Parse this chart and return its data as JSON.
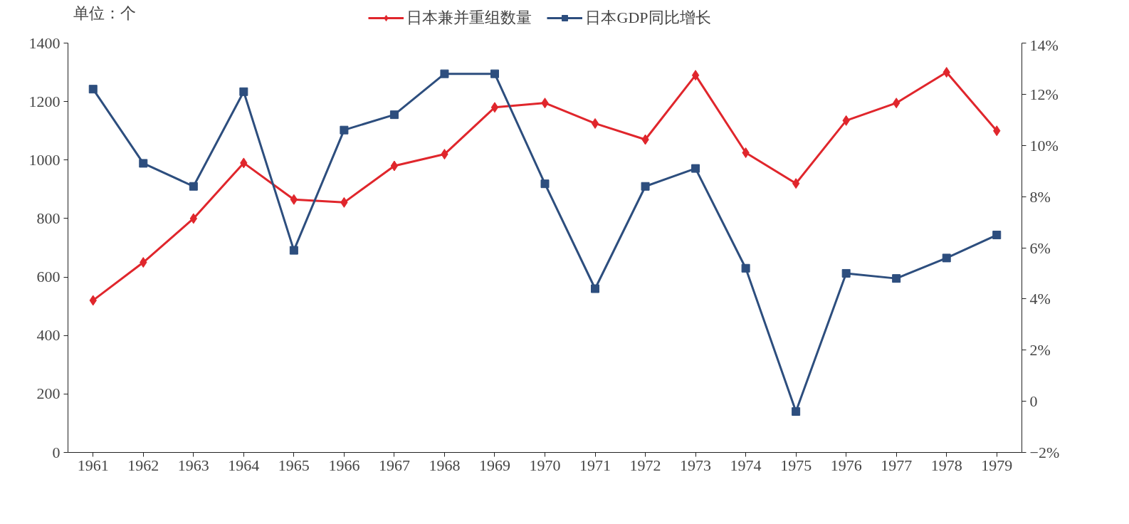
{
  "chart_data": {
    "type": "line",
    "categories": [
      "1961",
      "1962",
      "1963",
      "1964",
      "1965",
      "1966",
      "1967",
      "1968",
      "1969",
      "1970",
      "1971",
      "1972",
      "1973",
      "1974",
      "1975",
      "1976",
      "1977",
      "1978",
      "1979"
    ],
    "series": [
      {
        "name": "日本兼并重组数量",
        "color": "#e0262c",
        "marker": "diamond",
        "values": [
          520,
          650,
          800,
          990,
          865,
          855,
          980,
          1020,
          1180,
          1195,
          1125,
          1070,
          1290,
          1025,
          920,
          1135,
          1195,
          1300,
          1100
        ]
      },
      {
        "name": "日本GDP同比增长",
        "color": "#2d4e7e",
        "marker": "square",
        "axis": "y2",
        "values": [
          12.2,
          9.3,
          8.4,
          12.1,
          5.9,
          10.6,
          11.2,
          12.8,
          12.8,
          8.5,
          4.4,
          8.4,
          9.1,
          5.2,
          -0.4,
          5.0,
          4.8,
          5.6,
          6.5
        ]
      }
    ],
    "ylim": [
      0,
      1400
    ],
    "yticks": [
      0,
      200,
      400,
      600,
      800,
      1000,
      1200,
      1400
    ],
    "y2lim": [
      -2,
      14
    ],
    "y2ticks": [
      {
        "value": -2,
        "label": "−2%"
      },
      0,
      {
        "value": 2,
        "label": "2%"
      },
      {
        "value": 4,
        "label": "4%"
      },
      {
        "value": 6,
        "label": "6%"
      },
      {
        "value": 8,
        "label": "8%"
      },
      {
        "value": 10,
        "label": "10%"
      },
      {
        "value": 12,
        "label": "12%"
      },
      {
        "value": 14,
        "label": "14%"
      }
    ],
    "annotations": [
      "单位：个"
    ],
    "legend": "top",
    "grid": false,
    "line_style": "solid"
  }
}
